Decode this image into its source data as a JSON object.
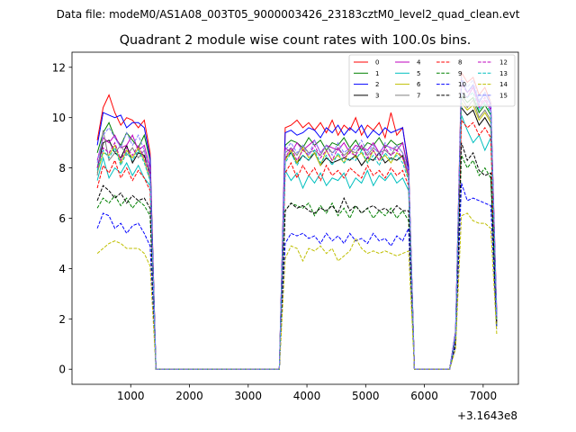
{
  "chart_data": {
    "type": "line",
    "suptitle": "Data file: modeM0/AS1A08_003T05_9000003426_23183cztM0_level2_quad_clean.evt",
    "title": "Quadrant 2 module wise count rates with 100.0s bins.",
    "xlabel": "",
    "ylabel": "",
    "x_offset_label": "+3.1643e8",
    "xlim": [
      0,
      7600
    ],
    "ylim": [
      -0.6,
      12.6
    ],
    "xticks": [
      1000,
      2000,
      3000,
      4000,
      5000,
      6000,
      7000
    ],
    "yticks": [
      0,
      2,
      4,
      6,
      8,
      10,
      12
    ],
    "grid": false,
    "legend_position": "top-right",
    "x": [
      430,
      530,
      630,
      730,
      830,
      930,
      1030,
      1130,
      1230,
      1330,
      1430,
      1530,
      1630,
      1730,
      1830,
      1930,
      2030,
      2130,
      2230,
      2330,
      2430,
      2530,
      2630,
      2730,
      2830,
      2930,
      3030,
      3130,
      3230,
      3330,
      3430,
      3530,
      3630,
      3730,
      3830,
      3930,
      4030,
      4130,
      4230,
      4330,
      4430,
      4530,
      4630,
      4730,
      4830,
      4930,
      5030,
      5130,
      5230,
      5330,
      5430,
      5530,
      5630,
      5730,
      5830,
      5930,
      6030,
      6130,
      6230,
      6330,
      6430,
      6530,
      6630,
      6730,
      6830,
      6930,
      7030,
      7130,
      7230
    ],
    "series": [
      {
        "name": "0",
        "color": "#ff0000",
        "dash": false,
        "values": [
          9.1,
          10.4,
          10.9,
          10.2,
          9.7,
          10.0,
          9.9,
          9.6,
          9.9,
          8.6,
          0.0,
          0.0,
          0.0,
          0.0,
          0.0,
          0.0,
          0.0,
          0.0,
          0.0,
          0.0,
          0.0,
          0.0,
          0.0,
          0.0,
          0.0,
          0.0,
          0.0,
          0.0,
          0.0,
          0.0,
          0.0,
          0.0,
          9.6,
          9.7,
          9.9,
          9.6,
          9.8,
          9.5,
          9.8,
          9.4,
          9.9,
          9.3,
          9.7,
          9.5,
          10.0,
          9.3,
          9.7,
          9.5,
          9.8,
          9.2,
          10.2,
          9.3,
          9.6,
          8.1,
          0.0,
          0.0,
          0.0,
          0.0,
          0.0,
          0.0,
          0.0,
          1.5,
          11.8,
          11.4,
          11.6,
          10.9,
          11.2,
          10.6,
          2.3
        ]
      },
      {
        "name": "1",
        "color": "#008000",
        "dash": false,
        "values": [
          8.6,
          9.4,
          9.8,
          9.2,
          8.9,
          9.4,
          9.1,
          8.8,
          9.3,
          8.3,
          0.0,
          0.0,
          0.0,
          0.0,
          0.0,
          0.0,
          0.0,
          0.0,
          0.0,
          0.0,
          0.0,
          0.0,
          0.0,
          0.0,
          0.0,
          0.0,
          0.0,
          0.0,
          0.0,
          0.0,
          0.0,
          0.0,
          8.9,
          9.1,
          9.0,
          8.8,
          9.2,
          8.9,
          9.1,
          8.7,
          9.0,
          8.9,
          9.2,
          8.8,
          9.1,
          8.7,
          9.0,
          8.9,
          9.2,
          8.8,
          9.1,
          8.9,
          9.0,
          7.9,
          0.0,
          0.0,
          0.0,
          0.0,
          0.0,
          0.0,
          0.0,
          1.4,
          10.9,
          10.6,
          10.8,
          10.2,
          10.5,
          10.1,
          2.0
        ]
      },
      {
        "name": "2",
        "color": "#0000ff",
        "dash": false,
        "values": [
          8.9,
          10.2,
          10.1,
          10.0,
          10.1,
          9.6,
          9.8,
          9.8,
          9.6,
          8.4,
          0.0,
          0.0,
          0.0,
          0.0,
          0.0,
          0.0,
          0.0,
          0.0,
          0.0,
          0.0,
          0.0,
          0.0,
          0.0,
          0.0,
          0.0,
          0.0,
          0.0,
          0.0,
          0.0,
          0.0,
          0.0,
          0.0,
          9.4,
          9.5,
          9.3,
          9.4,
          9.6,
          9.5,
          9.2,
          9.6,
          9.4,
          9.7,
          9.3,
          9.6,
          9.4,
          9.7,
          9.2,
          9.5,
          9.3,
          9.6,
          9.4,
          9.5,
          9.6,
          8.0,
          0.0,
          0.0,
          0.0,
          0.0,
          0.0,
          0.0,
          0.0,
          1.5,
          11.5,
          11.0,
          11.3,
          10.6,
          11.0,
          10.5,
          2.1
        ]
      },
      {
        "name": "3",
        "color": "#000000",
        "dash": false,
        "values": [
          8.0,
          9.0,
          9.1,
          8.6,
          8.4,
          8.9,
          8.2,
          8.6,
          8.5,
          7.8,
          0.0,
          0.0,
          0.0,
          0.0,
          0.0,
          0.0,
          0.0,
          0.0,
          0.0,
          0.0,
          0.0,
          0.0,
          0.0,
          0.0,
          0.0,
          0.0,
          0.0,
          0.0,
          0.0,
          0.0,
          0.0,
          0.0,
          8.4,
          8.6,
          8.2,
          8.5,
          8.3,
          8.6,
          8.1,
          8.4,
          8.2,
          8.3,
          8.4,
          8.3,
          8.5,
          8.1,
          8.4,
          8.3,
          8.6,
          8.2,
          8.4,
          8.3,
          8.5,
          7.6,
          0.0,
          0.0,
          0.0,
          0.0,
          0.0,
          0.0,
          0.0,
          1.3,
          10.4,
          10.1,
          10.3,
          9.7,
          10.0,
          9.6,
          2.0
        ]
      },
      {
        "name": "4",
        "color": "#bf00bf",
        "dash": false,
        "values": [
          8.3,
          9.2,
          9.0,
          9.3,
          8.8,
          8.9,
          9.3,
          8.7,
          8.9,
          8.0,
          0.0,
          0.0,
          0.0,
          0.0,
          0.0,
          0.0,
          0.0,
          0.0,
          0.0,
          0.0,
          0.0,
          0.0,
          0.0,
          0.0,
          0.0,
          0.0,
          0.0,
          0.0,
          0.0,
          0.0,
          0.0,
          0.0,
          8.8,
          8.6,
          9.0,
          8.7,
          8.9,
          9.1,
          8.6,
          8.9,
          8.8,
          8.7,
          9.0,
          8.6,
          8.9,
          8.8,
          8.7,
          9.0,
          8.6,
          8.9,
          8.8,
          8.7,
          9.0,
          7.8,
          0.0,
          0.0,
          0.0,
          0.0,
          0.0,
          0.0,
          0.0,
          1.4,
          11.0,
          10.8,
          11.2,
          10.4,
          10.7,
          10.3,
          2.1
        ]
      },
      {
        "name": "5",
        "color": "#00bfbf",
        "dash": false,
        "values": [
          7.5,
          8.4,
          7.6,
          8.0,
          7.8,
          8.2,
          7.7,
          8.1,
          7.6,
          7.3,
          0.0,
          0.0,
          0.0,
          0.0,
          0.0,
          0.0,
          0.0,
          0.0,
          0.0,
          0.0,
          0.0,
          0.0,
          0.0,
          0.0,
          0.0,
          0.0,
          0.0,
          0.0,
          0.0,
          0.0,
          0.0,
          0.0,
          7.9,
          7.5,
          7.8,
          7.2,
          7.7,
          7.4,
          7.8,
          7.3,
          7.6,
          7.5,
          7.8,
          7.2,
          7.6,
          7.4,
          7.9,
          7.3,
          7.7,
          7.5,
          7.8,
          7.4,
          7.6,
          7.1,
          0.0,
          0.0,
          0.0,
          0.0,
          0.0,
          0.0,
          0.0,
          1.2,
          10.1,
          9.5,
          9.0,
          9.3,
          8.7,
          9.2,
          2.0
        ]
      },
      {
        "name": "6",
        "color": "#bfbf00",
        "dash": false,
        "values": [
          7.8,
          8.6,
          8.5,
          8.9,
          8.2,
          8.7,
          8.4,
          8.8,
          8.3,
          7.5,
          0.0,
          0.0,
          0.0,
          0.0,
          0.0,
          0.0,
          0.0,
          0.0,
          0.0,
          0.0,
          0.0,
          0.0,
          0.0,
          0.0,
          0.0,
          0.0,
          0.0,
          0.0,
          0.0,
          0.0,
          0.0,
          0.0,
          8.3,
          8.7,
          8.2,
          8.8,
          8.4,
          8.6,
          8.1,
          8.7,
          8.3,
          8.5,
          8.2,
          8.8,
          8.4,
          8.6,
          8.2,
          8.7,
          8.3,
          8.5,
          8.2,
          8.6,
          8.4,
          7.6,
          0.0,
          0.0,
          0.0,
          0.0,
          0.0,
          0.0,
          0.0,
          1.3,
          10.6,
          10.3,
          10.5,
          9.9,
          10.2,
          9.8,
          2.0
        ]
      },
      {
        "name": "7",
        "color": "#808080",
        "dash": false,
        "values": [
          7.7,
          9.5,
          8.3,
          8.6,
          8.9,
          8.5,
          8.8,
          8.4,
          8.7,
          7.6,
          0.0,
          0.0,
          0.0,
          0.0,
          0.0,
          0.0,
          0.0,
          0.0,
          0.0,
          0.0,
          0.0,
          0.0,
          0.0,
          0.0,
          0.0,
          0.0,
          0.0,
          0.0,
          0.0,
          0.0,
          0.0,
          0.0,
          8.6,
          8.8,
          8.5,
          8.9,
          8.6,
          8.7,
          8.5,
          8.9,
          8.6,
          8.8,
          8.5,
          8.7,
          8.6,
          8.9,
          8.5,
          8.8,
          8.6,
          8.7,
          8.5,
          8.9,
          8.6,
          7.7,
          0.0,
          0.0,
          0.0,
          0.0,
          0.0,
          0.0,
          0.0,
          1.4,
          10.8,
          10.4,
          10.7,
          10.0,
          10.3,
          9.9,
          2.1
        ]
      },
      {
        "name": "8",
        "color": "#ff0000",
        "dash": true,
        "values": [
          7.2,
          8.1,
          7.8,
          8.3,
          7.6,
          8.0,
          7.5,
          7.9,
          7.6,
          7.1,
          0.0,
          0.0,
          0.0,
          0.0,
          0.0,
          0.0,
          0.0,
          0.0,
          0.0,
          0.0,
          0.0,
          0.0,
          0.0,
          0.0,
          0.0,
          0.0,
          0.0,
          0.0,
          0.0,
          0.0,
          0.0,
          0.0,
          7.8,
          8.2,
          7.6,
          8.1,
          7.7,
          8.0,
          7.5,
          8.1,
          7.7,
          7.9,
          7.6,
          8.0,
          7.8,
          7.6,
          8.1,
          7.7,
          7.9,
          7.6,
          8.0,
          7.7,
          7.9,
          7.3,
          0.0,
          0.0,
          0.0,
          0.0,
          0.0,
          0.0,
          0.0,
          1.2,
          9.9,
          9.6,
          9.8,
          9.3,
          9.6,
          9.2,
          1.9
        ]
      },
      {
        "name": "9",
        "color": "#008000",
        "dash": true,
        "values": [
          6.4,
          6.8,
          6.6,
          6.9,
          6.5,
          6.8,
          6.4,
          6.7,
          6.5,
          6.1,
          0.0,
          0.0,
          0.0,
          0.0,
          0.0,
          0.0,
          0.0,
          0.0,
          0.0,
          0.0,
          0.0,
          0.0,
          0.0,
          0.0,
          0.0,
          0.0,
          0.0,
          0.0,
          0.0,
          0.0,
          0.0,
          0.0,
          6.3,
          6.6,
          6.5,
          6.4,
          6.6,
          6.1,
          6.5,
          6.2,
          6.6,
          6.1,
          6.4,
          6.0,
          6.5,
          6.2,
          6.4,
          6.0,
          6.3,
          6.1,
          6.4,
          6.0,
          6.3,
          5.9,
          0.0,
          0.0,
          0.0,
          0.0,
          0.0,
          0.0,
          0.0,
          1.0,
          8.5,
          8.0,
          8.3,
          7.7,
          8.0,
          7.6,
          1.7
        ]
      },
      {
        "name": "10",
        "color": "#0000ff",
        "dash": true,
        "values": [
          5.6,
          6.2,
          6.1,
          5.6,
          5.8,
          5.4,
          5.7,
          5.8,
          5.4,
          4.9,
          0.0,
          0.0,
          0.0,
          0.0,
          0.0,
          0.0,
          0.0,
          0.0,
          0.0,
          0.0,
          0.0,
          0.0,
          0.0,
          0.0,
          0.0,
          0.0,
          0.0,
          0.0,
          0.0,
          0.0,
          0.0,
          0.0,
          5.0,
          5.4,
          5.3,
          5.4,
          5.2,
          5.3,
          5.0,
          5.4,
          5.1,
          5.3,
          5.0,
          5.4,
          5.1,
          5.2,
          5.0,
          5.4,
          5.1,
          5.2,
          4.9,
          5.3,
          5.1,
          5.6,
          0.0,
          0.0,
          0.0,
          0.0,
          0.0,
          0.0,
          0.0,
          0.9,
          7.4,
          6.7,
          6.8,
          6.7,
          6.6,
          6.5,
          1.6
        ]
      },
      {
        "name": "11",
        "color": "#000000",
        "dash": true,
        "values": [
          6.7,
          7.3,
          7.1,
          6.8,
          7.0,
          6.6,
          6.9,
          6.7,
          6.8,
          6.4,
          0.0,
          0.0,
          0.0,
          0.0,
          0.0,
          0.0,
          0.0,
          0.0,
          0.0,
          0.0,
          0.0,
          0.0,
          0.0,
          0.0,
          0.0,
          0.0,
          0.0,
          0.0,
          0.0,
          0.0,
          0.0,
          0.0,
          6.3,
          6.6,
          6.4,
          6.5,
          6.3,
          6.2,
          6.4,
          6.3,
          6.5,
          6.2,
          6.8,
          6.3,
          6.5,
          6.2,
          6.4,
          6.5,
          6.3,
          6.4,
          6.2,
          6.5,
          6.3,
          6.3,
          0.0,
          0.0,
          0.0,
          0.0,
          0.0,
          0.0,
          0.0,
          1.1,
          9.0,
          8.3,
          8.6,
          7.9,
          7.7,
          7.8,
          1.8
        ]
      },
      {
        "name": "12",
        "color": "#bf00bf",
        "dash": true,
        "values": [
          8.0,
          8.8,
          8.6,
          9.0,
          8.3,
          8.8,
          8.5,
          8.9,
          8.4,
          7.7,
          0.0,
          0.0,
          0.0,
          0.0,
          0.0,
          0.0,
          0.0,
          0.0,
          0.0,
          0.0,
          0.0,
          0.0,
          0.0,
          0.0,
          0.0,
          0.0,
          0.0,
          0.0,
          0.0,
          0.0,
          0.0,
          0.0,
          8.4,
          8.8,
          8.3,
          8.7,
          8.5,
          8.9,
          8.4,
          8.7,
          8.3,
          8.8,
          8.4,
          8.6,
          8.5,
          8.9,
          8.4,
          8.7,
          8.3,
          8.8,
          8.5,
          8.7,
          8.4,
          7.7,
          0.0,
          0.0,
          0.0,
          0.0,
          0.0,
          0.0,
          0.0,
          1.3,
          11.3,
          11.0,
          11.2,
          10.5,
          10.8,
          10.4,
          2.0
        ]
      },
      {
        "name": "13",
        "color": "#00bfbf",
        "dash": true,
        "values": [
          7.9,
          8.7,
          8.4,
          8.8,
          8.1,
          8.6,
          8.3,
          8.7,
          8.2,
          7.5,
          0.0,
          0.0,
          0.0,
          0.0,
          0.0,
          0.0,
          0.0,
          0.0,
          0.0,
          0.0,
          0.0,
          0.0,
          0.0,
          0.0,
          0.0,
          0.0,
          0.0,
          0.0,
          0.0,
          0.0,
          0.0,
          0.0,
          8.2,
          8.6,
          8.1,
          8.5,
          8.3,
          8.7,
          8.2,
          8.5,
          8.1,
          8.6,
          8.2,
          8.4,
          8.3,
          8.7,
          8.2,
          8.5,
          8.1,
          8.6,
          8.3,
          8.5,
          8.2,
          7.5,
          0.0,
          0.0,
          0.0,
          0.0,
          0.0,
          0.0,
          0.0,
          1.3,
          11.0,
          10.8,
          11.0,
          10.3,
          10.6,
          10.2,
          2.0
        ]
      },
      {
        "name": "14",
        "color": "#bfbf00",
        "dash": true,
        "values": [
          4.6,
          4.8,
          5.0,
          5.1,
          5.0,
          4.8,
          4.8,
          4.8,
          4.6,
          4.1,
          0.0,
          0.0,
          0.0,
          0.0,
          0.0,
          0.0,
          0.0,
          0.0,
          0.0,
          0.0,
          0.0,
          0.0,
          0.0,
          0.0,
          0.0,
          0.0,
          0.0,
          0.0,
          0.0,
          0.0,
          0.0,
          0.0,
          4.4,
          4.9,
          4.8,
          4.3,
          4.8,
          4.7,
          4.9,
          4.6,
          4.8,
          4.3,
          4.5,
          4.7,
          5.2,
          4.8,
          4.6,
          4.7,
          4.6,
          4.7,
          4.6,
          4.5,
          4.6,
          4.7,
          0.0,
          0.0,
          0.0,
          0.0,
          0.0,
          0.0,
          0.0,
          0.8,
          6.1,
          6.2,
          5.9,
          5.8,
          5.8,
          5.6,
          1.4
        ]
      },
      {
        "name": "15",
        "color": "#8080ff",
        "dash": true,
        "values": [
          8.2,
          9.3,
          9.6,
          9.2,
          8.8,
          9.4,
          8.9,
          9.3,
          8.7,
          7.9,
          0.0,
          0.0,
          0.0,
          0.0,
          0.0,
          0.0,
          0.0,
          0.0,
          0.0,
          0.0,
          0.0,
          0.0,
          0.0,
          0.0,
          0.0,
          0.0,
          0.0,
          0.0,
          0.0,
          0.0,
          0.0,
          0.0,
          8.7,
          9.0,
          8.6,
          8.9,
          8.5,
          9.1,
          8.6,
          8.9,
          8.5,
          9.0,
          8.6,
          8.8,
          8.7,
          9.1,
          8.6,
          8.9,
          8.5,
          9.0,
          8.7,
          8.9,
          8.6,
          7.9,
          0.0,
          0.0,
          0.0,
          0.0,
          0.0,
          0.0,
          0.0,
          1.4,
          11.6,
          11.2,
          11.5,
          10.7,
          11.0,
          10.6,
          2.1
        ]
      }
    ]
  }
}
